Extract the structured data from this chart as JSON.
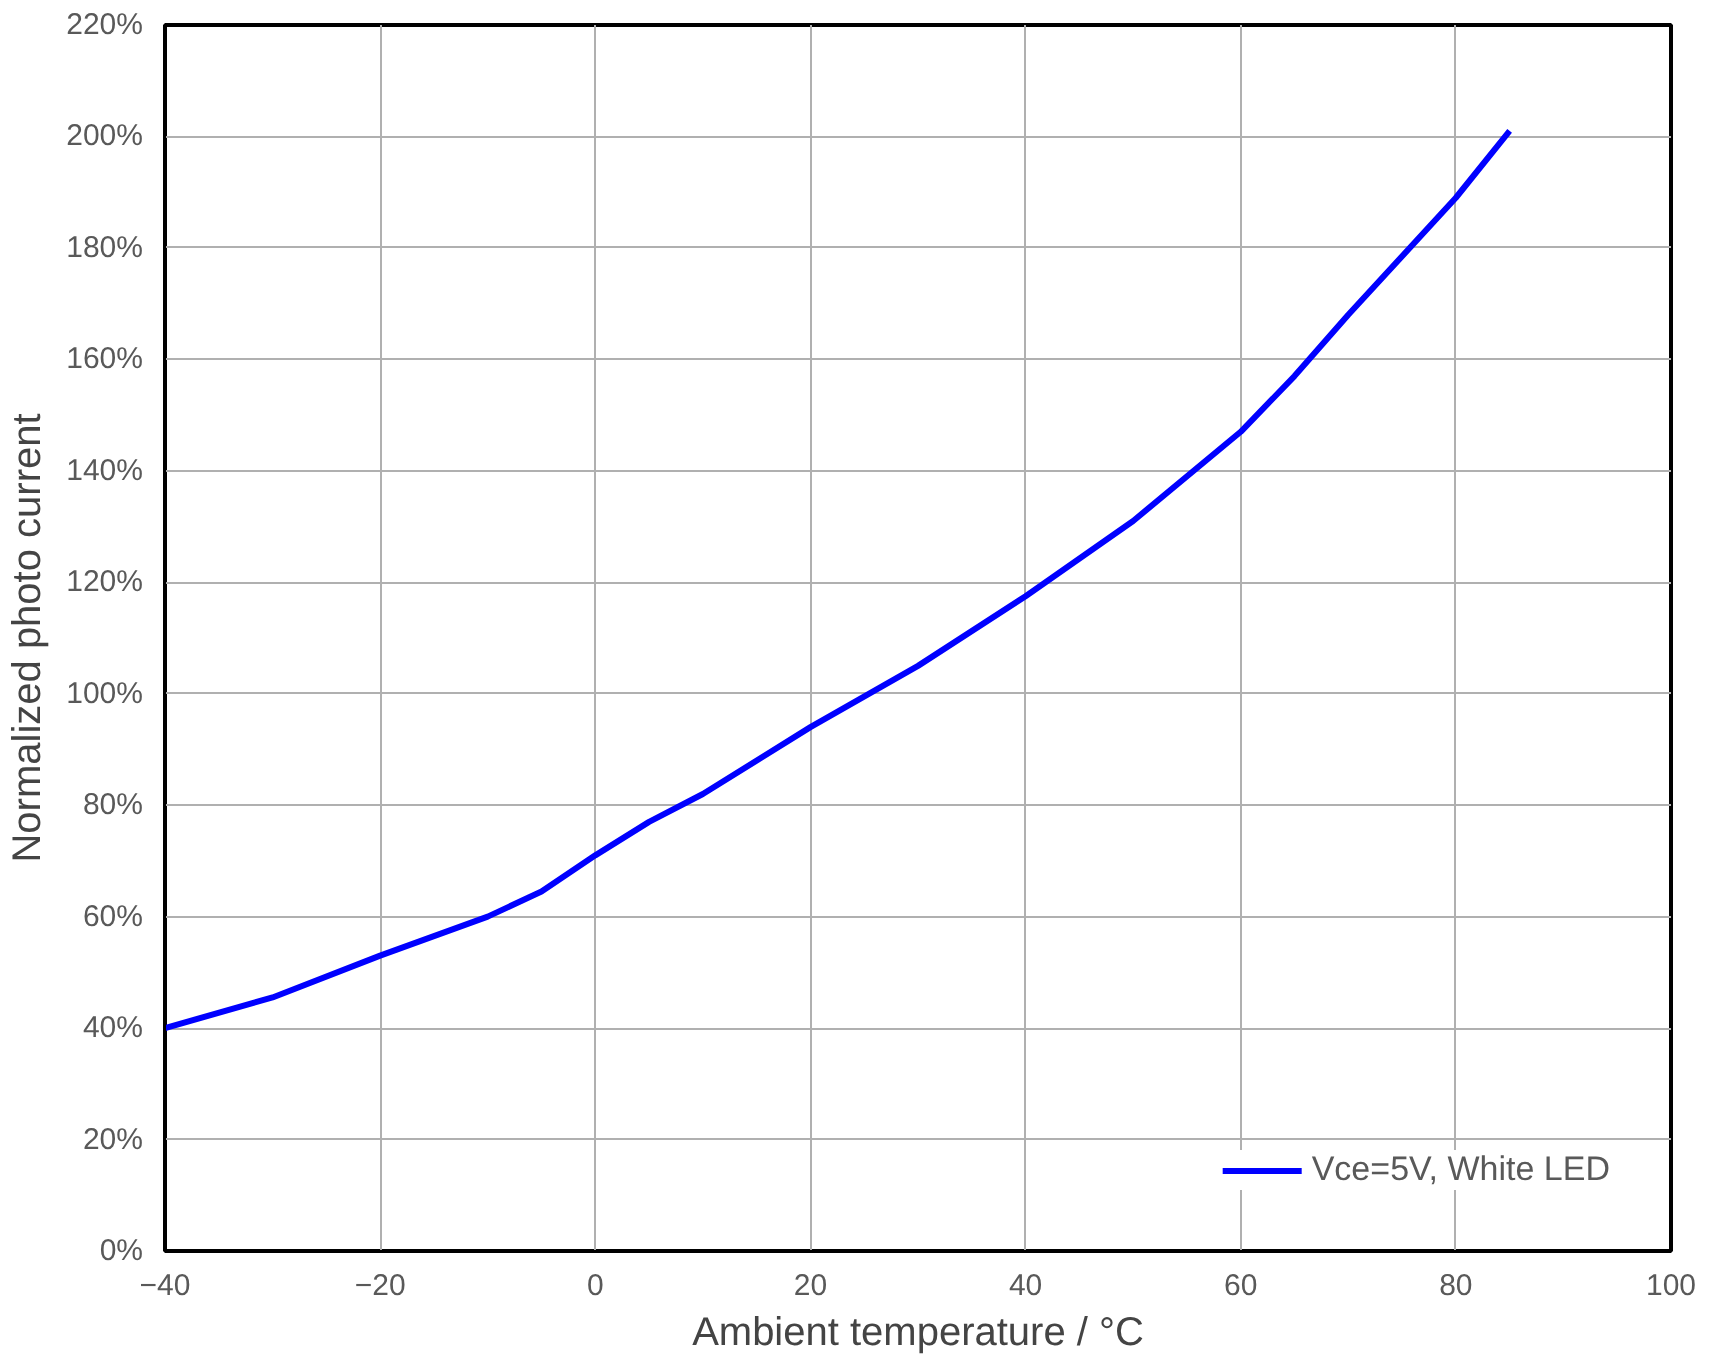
{
  "chart_data": {
    "type": "line",
    "xlabel": "Ambient temperature / °C",
    "ylabel": "Normalized photo current",
    "x": [
      -40,
      -30,
      -20,
      -10,
      -5,
      0,
      5,
      10,
      20,
      30,
      40,
      50,
      60,
      65,
      70,
      80,
      85
    ],
    "series": [
      {
        "name": "Vce=5V, White LED",
        "color": "#0000ff",
        "values": [
          40,
          45.5,
          53,
          60,
          64.5,
          71,
          77,
          82,
          94,
          105,
          117.5,
          131,
          147,
          157,
          168,
          189,
          201
        ]
      }
    ],
    "xlim": [
      -40,
      100
    ],
    "xticks": [
      -40,
      -20,
      0,
      20,
      40,
      60,
      80,
      100
    ],
    "ylim": [
      0,
      220
    ],
    "yticks": [
      {
        "value": 0,
        "label": "0%"
      },
      {
        "value": 20,
        "label": "20%"
      },
      {
        "value": 40,
        "label": "40%"
      },
      {
        "value": 60,
        "label": "60%"
      },
      {
        "value": 80,
        "label": "80%"
      },
      {
        "value": 100,
        "label": "100%"
      },
      {
        "value": 120,
        "label": "120%"
      },
      {
        "value": 140,
        "label": "140%"
      },
      {
        "value": 160,
        "label": "160%"
      },
      {
        "value": 180,
        "label": "180%"
      },
      {
        "value": 200,
        "label": "200%"
      },
      {
        "value": 220,
        "label": "220%"
      }
    ],
    "grid": true,
    "legend": "bottom right",
    "marker": "none",
    "line_style": "solid"
  }
}
